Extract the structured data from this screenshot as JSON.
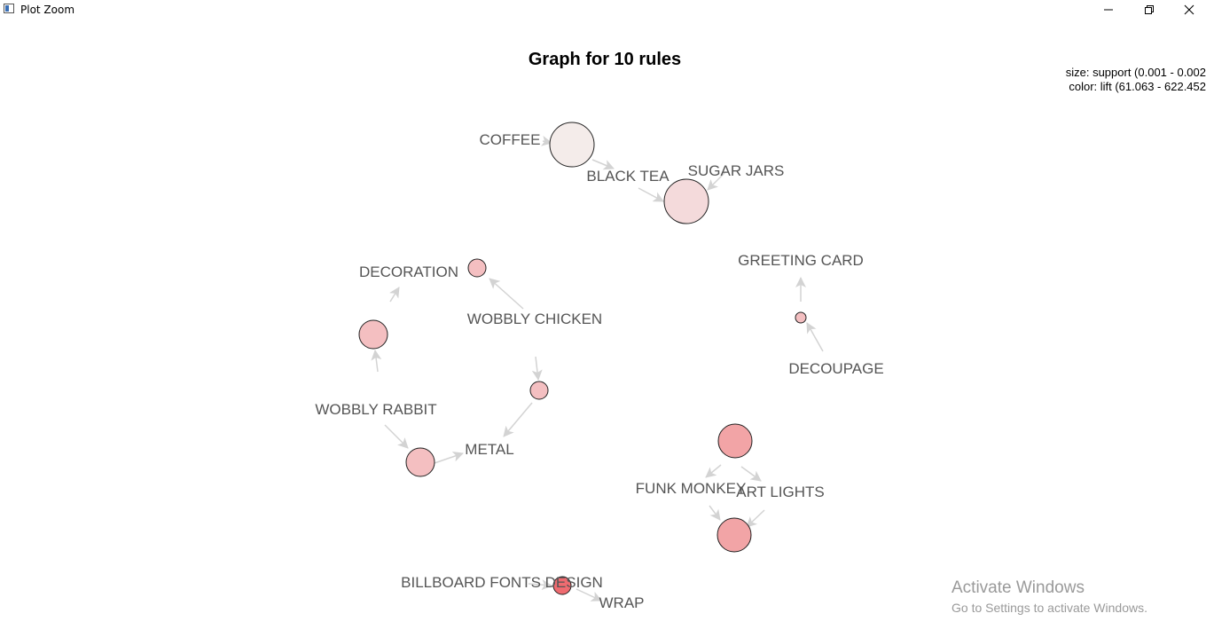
{
  "window": {
    "title": "Plot Zoom"
  },
  "plot": {
    "title": "Graph for 10 rules",
    "legend_size": "size: support (0.001 - 0.002",
    "legend_color": "color: lift (61.063 - 622.452"
  },
  "nodes": [
    {
      "label": "COFFEE"
    },
    {
      "label": "BLACK TEA"
    },
    {
      "label": "SUGAR JARS"
    },
    {
      "label": "DECORATION"
    },
    {
      "label": "WOBBLY CHICKEN"
    },
    {
      "label": "GREETING CARD"
    },
    {
      "label": "DECOUPAGE"
    },
    {
      "label": "WOBBLY RABBIT"
    },
    {
      "label": "METAL"
    },
    {
      "label": "FUNK MONKEY"
    },
    {
      "label": "ART LIGHTS"
    },
    {
      "label": "BILLBOARD FONTS DESIGN"
    },
    {
      "label": "WRAP"
    }
  ],
  "colors": {
    "edge": "#d3d3d3",
    "label": "#555555",
    "rule_fill_low": "#f4ecea",
    "rule_fill_high": "#ef6b70"
  },
  "watermark": {
    "title": "Activate Windows",
    "subtitle": "Go to Settings to activate Windows."
  }
}
